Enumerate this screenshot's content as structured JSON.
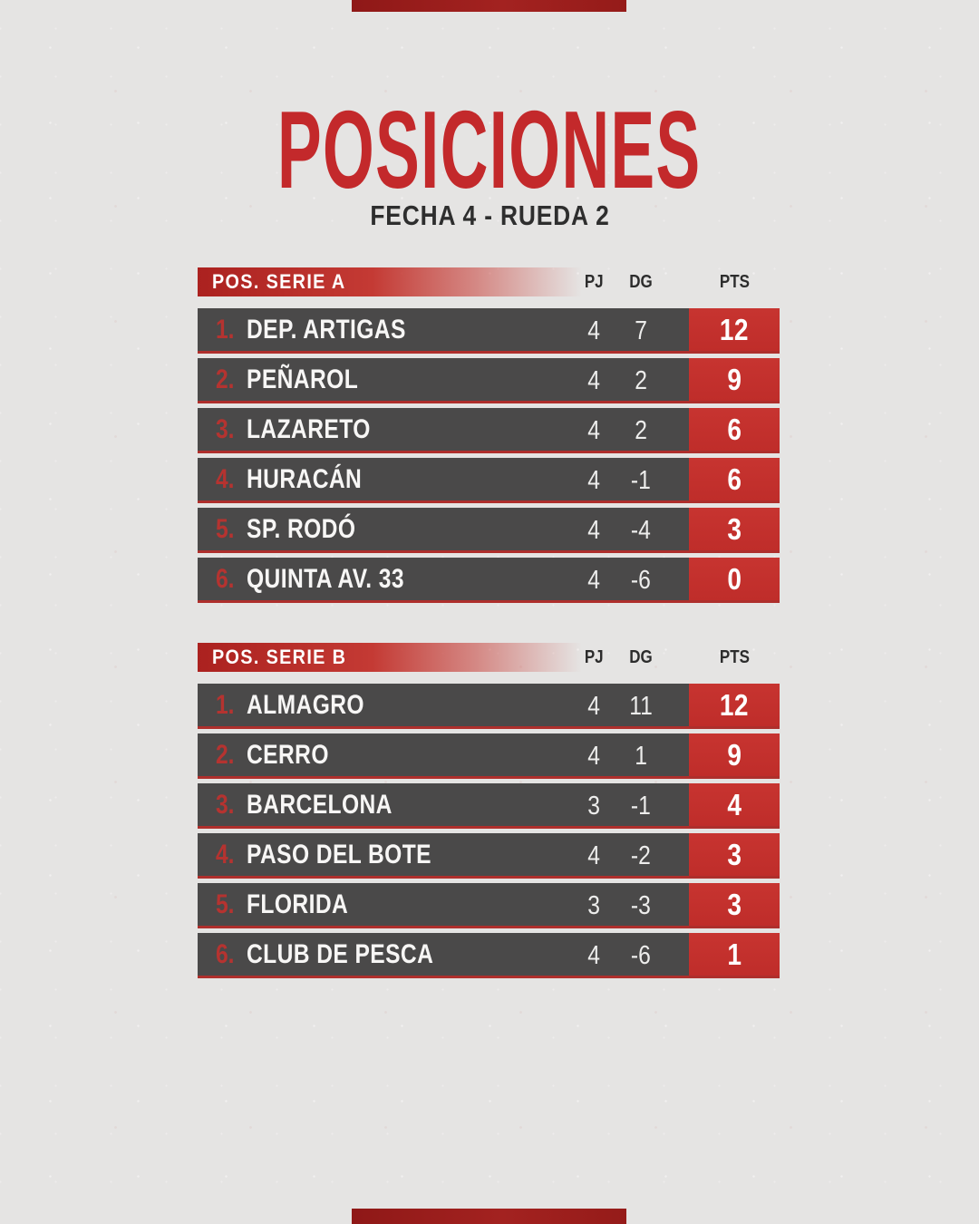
{
  "theme": {
    "accent_red": "#c43230",
    "dark_red": "#9a1d1b",
    "row_gray": "#4a4949",
    "background_gray": "#e5e4e3",
    "text_dark": "#2e2e2e",
    "text_light": "#ffffff"
  },
  "header": {
    "title": "POSICIONES",
    "subtitle": "FECHA 4 - RUEDA 2"
  },
  "columns": {
    "pj": "PJ",
    "dg": "DG",
    "pts": "PTS"
  },
  "tables": [
    {
      "label": "POS. SERIE A",
      "rows": [
        {
          "pos": "1.",
          "team": "DEP. ARTIGAS",
          "pj": "4",
          "dg": "7",
          "pts": "12"
        },
        {
          "pos": "2.",
          "team": "PEÑAROL",
          "pj": "4",
          "dg": "2",
          "pts": "9"
        },
        {
          "pos": "3.",
          "team": "LAZARETO",
          "pj": "4",
          "dg": "2",
          "pts": "6"
        },
        {
          "pos": "4.",
          "team": "HURACÁN",
          "pj": "4",
          "dg": "-1",
          "pts": "6"
        },
        {
          "pos": "5.",
          "team": "SP. RODÓ",
          "pj": "4",
          "dg": "-4",
          "pts": "3"
        },
        {
          "pos": "6.",
          "team": "QUINTA AV. 33",
          "pj": "4",
          "dg": "-6",
          "pts": "0"
        }
      ]
    },
    {
      "label": "POS. SERIE B",
      "rows": [
        {
          "pos": "1.",
          "team": "ALMAGRO",
          "pj": "4",
          "dg": "11",
          "pts": "12"
        },
        {
          "pos": "2.",
          "team": "CERRO",
          "pj": "4",
          "dg": "1",
          "pts": "9"
        },
        {
          "pos": "3.",
          "team": "BARCELONA",
          "pj": "3",
          "dg": "-1",
          "pts": "4"
        },
        {
          "pos": "4.",
          "team": "PASO DEL BOTE",
          "pj": "4",
          "dg": "-2",
          "pts": "3"
        },
        {
          "pos": "5.",
          "team": "FLORIDA",
          "pj": "3",
          "dg": "-3",
          "pts": "3"
        },
        {
          "pos": "6.",
          "team": "CLUB DE PESCA",
          "pj": "4",
          "dg": "-6",
          "pts": "1"
        }
      ]
    }
  ],
  "chart_data": {
    "type": "table",
    "title": "POSICIONES",
    "subtitle": "FECHA 4 - RUEDA 2",
    "tables": [
      {
        "name": "POS. SERIE A",
        "columns": [
          "POS",
          "EQUIPO",
          "PJ",
          "DG",
          "PTS"
        ],
        "rows": [
          [
            1,
            "DEP. ARTIGAS",
            4,
            7,
            12
          ],
          [
            2,
            "PEÑAROL",
            4,
            2,
            9
          ],
          [
            3,
            "LAZARETO",
            4,
            2,
            6
          ],
          [
            4,
            "HURACÁN",
            4,
            -1,
            6
          ],
          [
            5,
            "SP. RODÓ",
            4,
            -4,
            3
          ],
          [
            6,
            "QUINTA AV. 33",
            4,
            -6,
            0
          ]
        ]
      },
      {
        "name": "POS. SERIE B",
        "columns": [
          "POS",
          "EQUIPO",
          "PJ",
          "DG",
          "PTS"
        ],
        "rows": [
          [
            1,
            "ALMAGRO",
            4,
            11,
            12
          ],
          [
            2,
            "CERRO",
            4,
            1,
            9
          ],
          [
            3,
            "BARCELONA",
            3,
            -1,
            4
          ],
          [
            4,
            "PASO DEL BOTE",
            4,
            -2,
            3
          ],
          [
            5,
            "FLORIDA",
            3,
            -3,
            3
          ],
          [
            6,
            "CLUB DE PESCA",
            4,
            -6,
            1
          ]
        ]
      }
    ]
  }
}
